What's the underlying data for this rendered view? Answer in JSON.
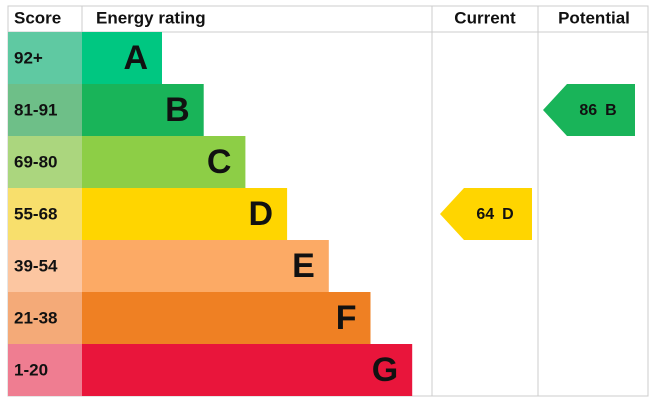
{
  "header": {
    "score": "Score",
    "energy_rating": "Energy rating",
    "current": "Current",
    "potential": "Potential"
  },
  "rows": [
    {
      "score": "92+",
      "letter": "A",
      "color": "#00c781",
      "light": "#5fc9a2"
    },
    {
      "score": "81-91",
      "letter": "B",
      "color": "#19b459",
      "light": "#6ebf88"
    },
    {
      "score": "69-80",
      "letter": "C",
      "color": "#8dce46",
      "light": "#abd67e"
    },
    {
      "score": "55-68",
      "letter": "D",
      "color": "#ffd500",
      "light": "#f8df6c"
    },
    {
      "score": "39-54",
      "letter": "E",
      "color": "#fcaa65",
      "light": "#fcc6a1"
    },
    {
      "score": "21-38",
      "letter": "F",
      "color": "#ef8023",
      "light": "#f4aa78"
    },
    {
      "score": "1-20",
      "letter": "G",
      "color": "#e9153b",
      "light": "#ef7d91"
    }
  ],
  "current": {
    "value": 64,
    "band": "D"
  },
  "potential": {
    "value": 86,
    "band": "B"
  }
}
